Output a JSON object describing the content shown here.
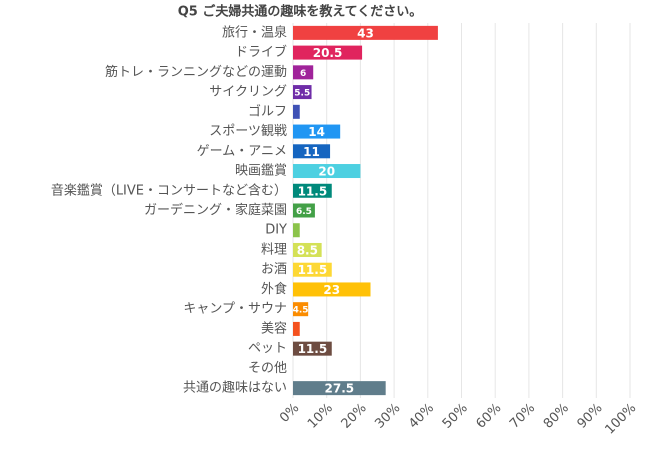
{
  "chart_data": {
    "type": "bar",
    "orientation": "horizontal",
    "title": "Q5 ご夫婦共通の趣味を教えてください。",
    "categories": [
      "旅行・温泉",
      "ドライブ",
      "筋トレ・ランニングなどの運動",
      "サイクリング",
      "ゴルフ",
      "スポーツ観戦",
      "ゲーム・アニメ",
      "映画鑑賞",
      "音楽鑑賞（LIVE・コンサートなど含む）",
      "ガーデニング・家庭菜園",
      "DIY",
      "料理",
      "お酒",
      "外食",
      "キャンプ・サウナ",
      "美容",
      "ペット",
      "その他",
      "共通の趣味はない"
    ],
    "values": [
      43,
      20.5,
      6,
      5.5,
      2,
      14,
      11,
      20,
      11.5,
      6.5,
      2,
      8.5,
      11.5,
      23,
      4.5,
      2,
      11.5,
      0,
      27.5
    ],
    "colors": [
      "#f04141",
      "#e0245e",
      "#a0239a",
      "#6f2da8",
      "#3f51b5",
      "#2196f3",
      "#1565c0",
      "#4dd0e1",
      "#00897b",
      "#43a047",
      "#8bc34a",
      "#d4e157",
      "#fdd835",
      "#ffc107",
      "#fb8c00",
      "#f4511e",
      "#6d4c41",
      "#9e9e9e",
      "#607d8b"
    ],
    "xlim": [
      0,
      100
    ],
    "xticks": [
      {
        "value": 0,
        "label": "0%"
      },
      {
        "value": 10,
        "label": "10%"
      },
      {
        "value": 20,
        "label": "20%"
      },
      {
        "value": 30,
        "label": "30%"
      },
      {
        "value": 40,
        "label": "40%"
      },
      {
        "value": 50,
        "label": "50%"
      },
      {
        "value": 60,
        "label": "60%"
      },
      {
        "value": 70,
        "label": "70%"
      },
      {
        "value": 80,
        "label": "80%"
      },
      {
        "value": 90,
        "label": "90%"
      },
      {
        "value": 100,
        "label": "100%"
      }
    ],
    "grid": true
  }
}
